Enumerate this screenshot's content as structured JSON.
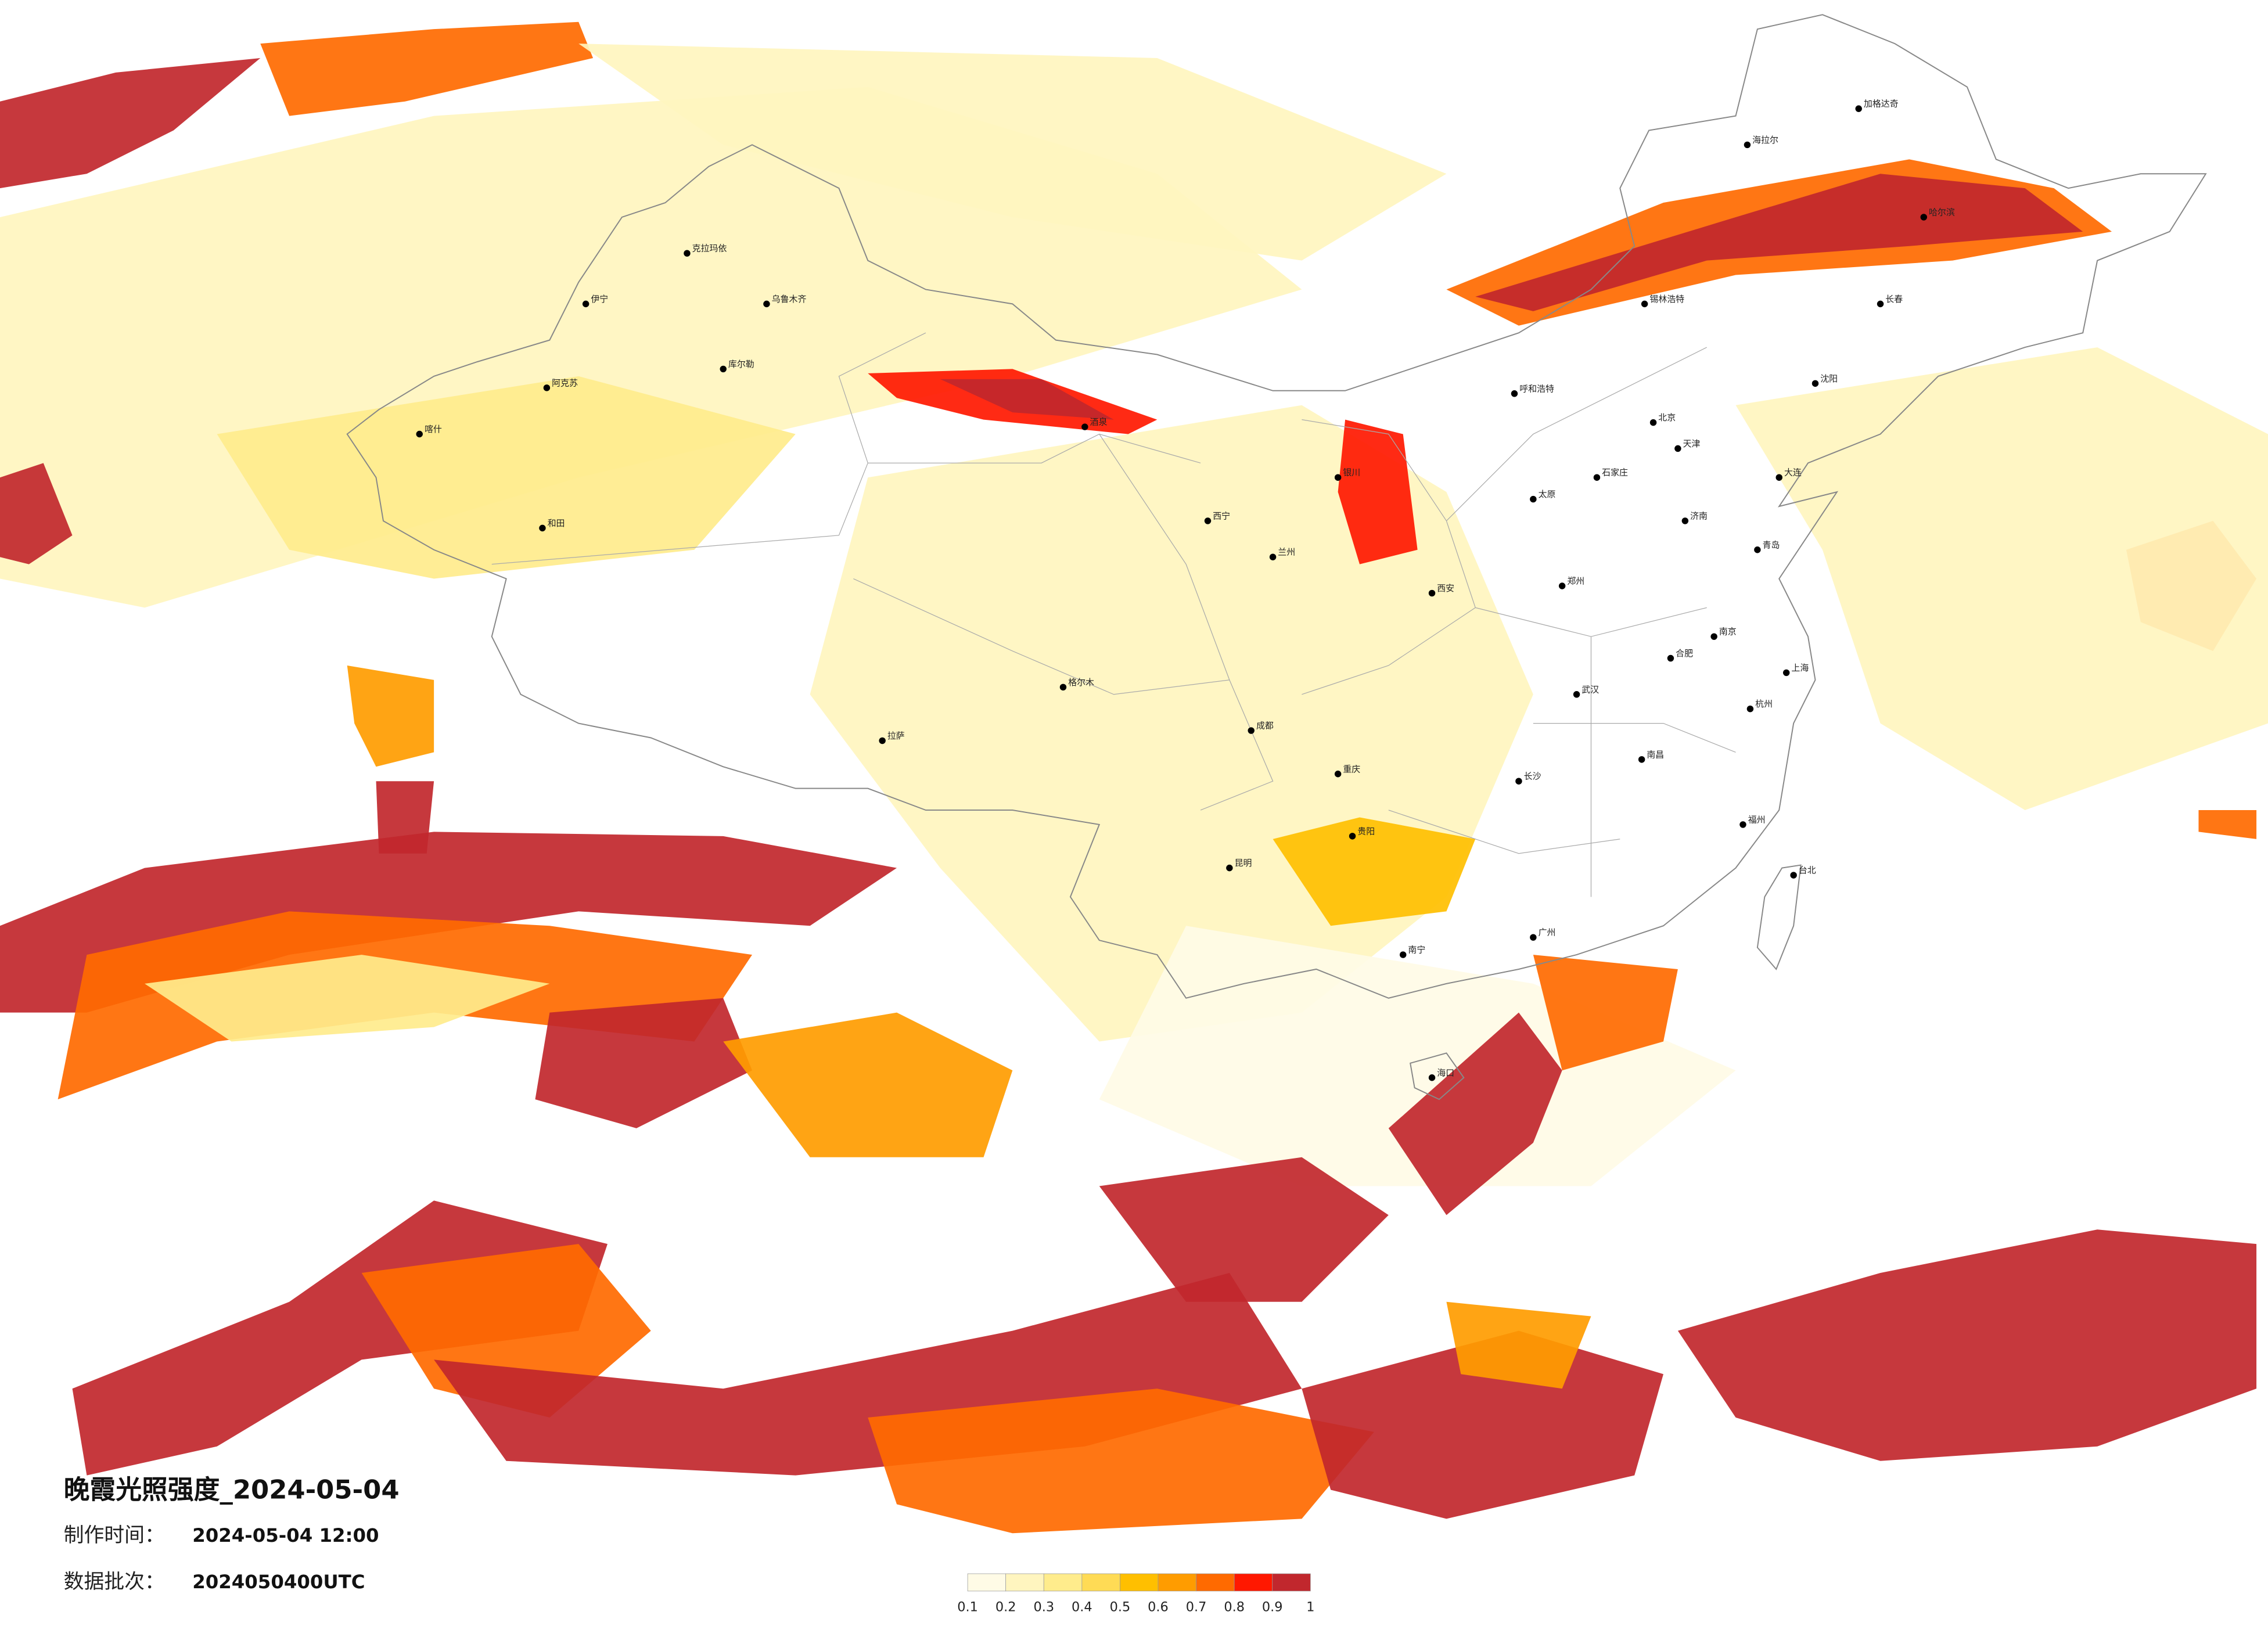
{
  "title": "晚霞光照强度_2024-05-04",
  "production_time": {
    "label": "制作时间：",
    "value": "2024-05-04 12:00"
  },
  "data_batch": {
    "label": "数据批次：",
    "value": "2024050400UTC"
  },
  "colorbar": {
    "colors": [
      "#fffbe6",
      "#fff5bf",
      "#ffec8c",
      "#ffdb55",
      "#ffbf00",
      "#ff9c00",
      "#ff6a00",
      "#ff1800",
      "#c1272d"
    ],
    "ticks": [
      0.1,
      0.2,
      0.3,
      0.4,
      0.5,
      0.6,
      0.7,
      0.8,
      0.9,
      1
    ]
  },
  "cities": [
    "北京",
    "天津",
    "石家庄",
    "太原",
    "呼和浩特",
    "沈阳",
    "长春",
    "哈尔滨",
    "济南",
    "郑州",
    "西安",
    "兰州",
    "西宁",
    "银川",
    "乌鲁木齐",
    "拉萨",
    "成都",
    "重庆",
    "贵阳",
    "昆明",
    "南宁",
    "广州",
    "长沙",
    "武汉",
    "南京",
    "上海",
    "杭州",
    "福州",
    "南昌",
    "合肥",
    "海口",
    "台北",
    "大连",
    "青岛",
    "克拉玛依",
    "喀什",
    "和田",
    "格尔木",
    "酒泉",
    "阿克苏",
    "伊宁",
    "库尔勒",
    "加格达奇",
    "海拉尔",
    "锡林浩特"
  ]
}
